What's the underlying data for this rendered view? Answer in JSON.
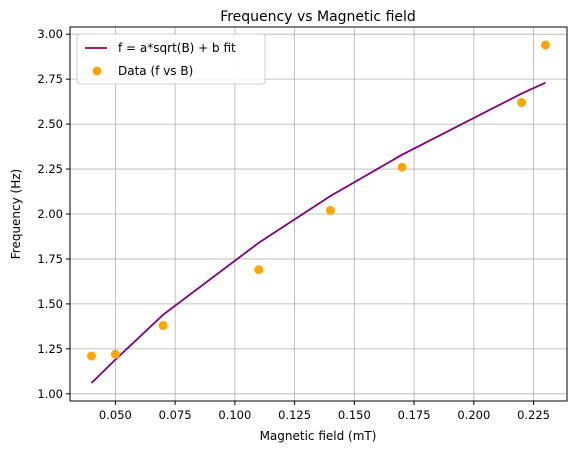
{
  "chart_data": {
    "type": "line",
    "title": "Frequency vs Magnetic field",
    "xlabel": "Magnetic field (mT)",
    "ylabel": "Frequency (Hz)",
    "xlim": [
      0.031,
      0.239
    ],
    "ylim": [
      0.96,
      3.04
    ],
    "x_ticks": [
      0.05,
      0.075,
      0.1,
      0.125,
      0.15,
      0.175,
      0.2,
      0.225
    ],
    "x_tick_labels": [
      "0.050",
      "0.075",
      "0.100",
      "0.125",
      "0.150",
      "0.175",
      "0.200",
      "0.225"
    ],
    "y_ticks": [
      1.0,
      1.25,
      1.5,
      1.75,
      2.0,
      2.25,
      2.5,
      2.75,
      3.0
    ],
    "y_tick_labels": [
      "1.00",
      "1.25",
      "1.50",
      "1.75",
      "2.00",
      "2.25",
      "2.50",
      "2.75",
      "3.00"
    ],
    "grid": true,
    "legend_position": "upper-left",
    "series": [
      {
        "name": "f = a*sqrt(B) + b fit",
        "kind": "line",
        "color": "#800080",
        "x": [
          0.04,
          0.05,
          0.07,
          0.11,
          0.14,
          0.17,
          0.22,
          0.23
        ],
        "y": [
          1.06,
          1.19,
          1.44,
          1.84,
          2.1,
          2.33,
          2.67,
          2.73
        ]
      },
      {
        "name": "Data (f vs B)",
        "kind": "scatter",
        "color": "#ffa500",
        "x": [
          0.04,
          0.05,
          0.07,
          0.11,
          0.14,
          0.17,
          0.22,
          0.23
        ],
        "y": [
          1.21,
          1.22,
          1.38,
          1.69,
          2.02,
          2.26,
          2.62,
          2.94
        ]
      }
    ]
  }
}
